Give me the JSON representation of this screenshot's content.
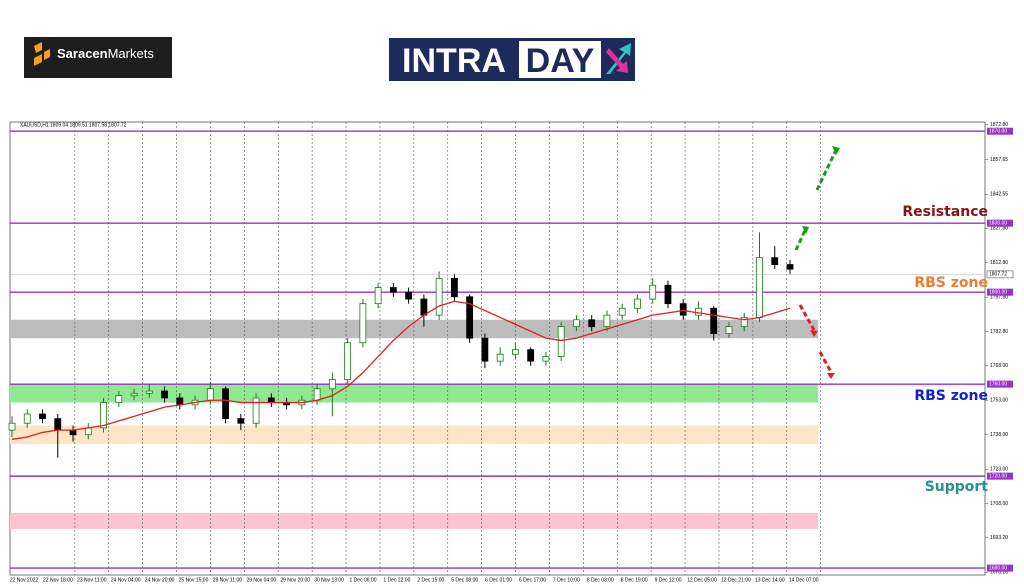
{
  "header": {
    "brand_bold": "Saracen",
    "brand_light": "Markets",
    "intra": "INTRA",
    "day": "DAY"
  },
  "chart_data": {
    "type": "candlestick",
    "symbol_info": "XAUUSD,H1  1809.04 1809.51 1807.58 1807.72",
    "up_color": "#1a7a1a",
    "down_color": "#000000",
    "ylim": [
      1677,
      1874
    ],
    "yticks": [
      {
        "value": 1872.8,
        "label": "1872.80"
      },
      {
        "value": 1857.65,
        "label": "1857.65"
      },
      {
        "value": 1842.55,
        "label": "1842.55"
      },
      {
        "value": 1827.8,
        "label": "1827.80"
      },
      {
        "value": 1812.8,
        "label": "1812.80"
      },
      {
        "value": 1797.8,
        "label": "1797.80"
      },
      {
        "value": 1782.8,
        "label": "1782.80"
      },
      {
        "value": 1768,
        "label": "1768.00"
      },
      {
        "value": 1753,
        "label": "1753.00"
      },
      {
        "value": 1738,
        "label": "1738.00"
      },
      {
        "value": 1723,
        "label": "1723.00"
      },
      {
        "value": 1708,
        "label": "1708.00"
      },
      {
        "value": 1693.2,
        "label": "1693.20"
      },
      {
        "value": 1678.2,
        "label": "1678.20"
      }
    ],
    "xticks": [
      "22 Nov 2022",
      "22 Nov 18:00",
      "23 Nov 11:00",
      "24 Nov 04:00",
      "24 Nov 20:00",
      "25 Nov 15:00",
      "28 Nov 11:00",
      "29 Nov 04:00",
      "29 Nov 20:00",
      "30 Nov 13:00",
      "1 Dec 06:00",
      "1 Dec 22:00",
      "2 Dec 15:00",
      "5 Dec 08:00",
      "6 Dec 01:00",
      "6 Dec 17:00",
      "7 Dec 10:00",
      "8 Dec 03:00",
      "8 Dec 19:00",
      "9 Dec 12:00",
      "12 Dec 05:00",
      "12 Dec 21:00",
      "13 Dec 14:00",
      "14 Dec 07:00"
    ],
    "open": [
      1740,
      1743,
      1747,
      1745,
      1740,
      1738,
      1741,
      1752,
      1755,
      1756,
      1757,
      1754,
      1751,
      1753,
      1758,
      1745,
      1743,
      1754,
      1752,
      1751,
      1753,
      1758,
      1762,
      1778,
      1795,
      1802,
      1800,
      1797,
      1790,
      1806,
      1798,
      1780,
      1770,
      1773,
      1775,
      1770,
      1772,
      1785,
      1788,
      1785,
      1790,
      1793,
      1797,
      1803,
      1795,
      1790,
      1793,
      1782,
      1785,
      1789,
      1815,
      1812
    ],
    "high": [
      1746,
      1749,
      1749,
      1747,
      1742,
      1743,
      1754,
      1757,
      1758,
      1760,
      1759,
      1756,
      1755,
      1761,
      1759,
      1747,
      1756,
      1756,
      1754,
      1755,
      1760,
      1765,
      1780,
      1797,
      1804,
      1804,
      1802,
      1799,
      1809,
      1808,
      1799,
      1782,
      1776,
      1778,
      1776,
      1774,
      1787,
      1790,
      1790,
      1792,
      1795,
      1799,
      1806,
      1805,
      1797,
      1796,
      1794,
      1787,
      1791,
      1826,
      1820,
      1814
    ],
    "low": [
      1737,
      1741,
      1743,
      1728,
      1735,
      1736,
      1739,
      1750,
      1753,
      1754,
      1752,
      1749,
      1749,
      1751,
      1743,
      1740,
      1741,
      1750,
      1749,
      1749,
      1751,
      1746,
      1760,
      1776,
      1793,
      1798,
      1795,
      1785,
      1788,
      1796,
      1778,
      1767,
      1768,
      1771,
      1768,
      1768,
      1770,
      1783,
      1783,
      1783,
      1788,
      1791,
      1795,
      1793,
      1788,
      1788,
      1779,
      1780,
      1783,
      1787,
      1810,
      1808
    ],
    "close": [
      1743,
      1747,
      1745,
      1740,
      1738,
      1741,
      1752,
      1755,
      1756,
      1757,
      1754,
      1751,
      1753,
      1758,
      1745,
      1743,
      1754,
      1752,
      1751,
      1753,
      1758,
      1762,
      1778,
      1795,
      1802,
      1800,
      1797,
      1790,
      1806,
      1798,
      1780,
      1770,
      1773,
      1775,
      1770,
      1772,
      1785,
      1788,
      1785,
      1790,
      1793,
      1797,
      1803,
      1795,
      1790,
      1793,
      1782,
      1785,
      1789,
      1815,
      1812,
      1810
    ],
    "moving_average": {
      "color": "#e02020",
      "values": [
        1736,
        1737,
        1739,
        1740,
        1740,
        1741,
        1742,
        1744,
        1746,
        1748,
        1750,
        1751,
        1752,
        1753,
        1753,
        1752,
        1752,
        1752,
        1752,
        1752,
        1753,
        1755,
        1759,
        1765,
        1772,
        1779,
        1785,
        1790,
        1794,
        1796,
        1795,
        1792,
        1789,
        1786,
        1783,
        1780,
        1779,
        1780,
        1782,
        1784,
        1786,
        1788,
        1790,
        1791,
        1792,
        1791,
        1790,
        1789,
        1788,
        1789,
        1791,
        1793
      ]
    },
    "last_price": {
      "value": 1807.72,
      "label": "1807.72"
    },
    "level_color": "#9b30c8",
    "levels": [
      {
        "value": 1870,
        "label": "1870.00"
      },
      {
        "value": 1830,
        "label": "1830.00"
      },
      {
        "value": 1800,
        "label": "1800.00"
      },
      {
        "value": 1760,
        "label": "1760.00"
      },
      {
        "value": 1720,
        "label": "1720.00"
      },
      {
        "value": 1680,
        "label": "1680.00"
      }
    ],
    "zones": [
      {
        "from": 1780,
        "to": 1788,
        "color": "#bdbdbd"
      },
      {
        "from": 1752,
        "to": 1760,
        "color": "#90e890"
      },
      {
        "from": 1734,
        "to": 1742,
        "color": "#fde6c8"
      },
      {
        "from": 1697,
        "to": 1704,
        "color": "#ffc4cf"
      }
    ],
    "annotations": [
      {
        "text": "Resistance",
        "color": "#8b1010"
      },
      {
        "text": "RBS zone",
        "color": "#f07a30"
      },
      {
        "text": "RBS zone",
        "color": "#1020d0"
      },
      {
        "text": "Support",
        "color": "#2a9090"
      }
    ]
  }
}
